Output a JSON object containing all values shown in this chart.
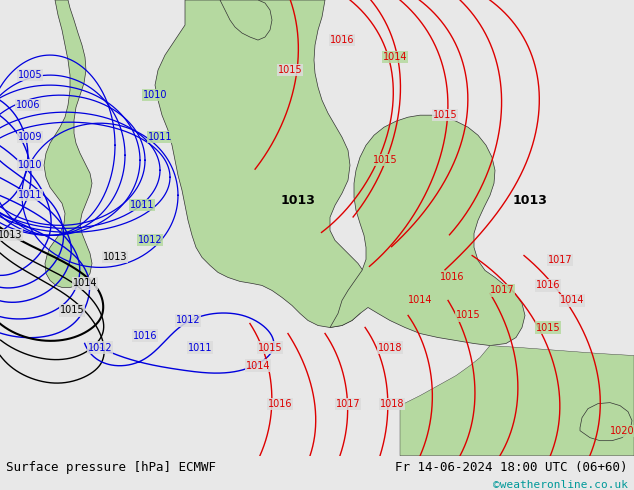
{
  "title_left": "Surface pressure [hPa] ECMWF",
  "title_right": "Fr 14-06-2024 18:00 UTC (06+60)",
  "copyright": "©weatheronline.co.uk",
  "bg_color": "#e8e8e8",
  "land_color": "#b5d9a0",
  "sea_color": "#dcdcdc",
  "text_color_black": "#000000",
  "text_color_blue": "#0000cc",
  "text_color_red": "#cc0000",
  "text_color_cyan": "#009999",
  "bottom_bar_color": "#d0d0d0",
  "isobar_blue_color": "#0000dd",
  "isobar_red_color": "#dd0000",
  "isobar_black_color": "#000000",
  "font_size_labels": 8,
  "font_size_bottom": 9,
  "font_size_copyright": 8
}
